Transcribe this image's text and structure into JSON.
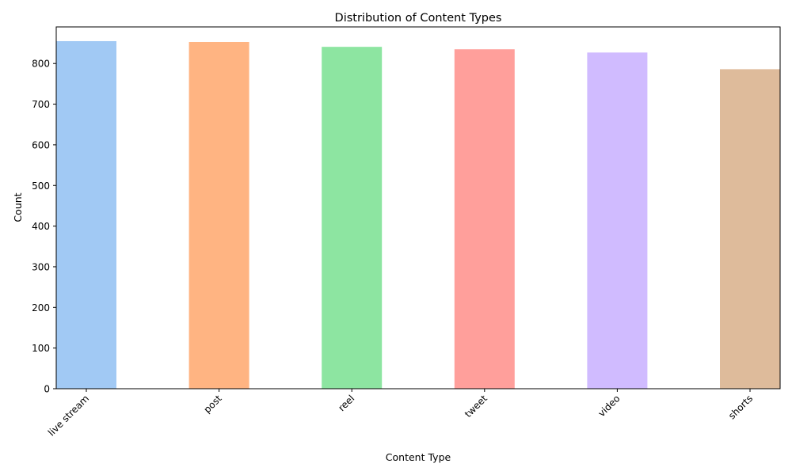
{
  "chart_data": {
    "type": "bar",
    "title": "Distribution of Content Types",
    "xlabel": "Content Type",
    "ylabel": "Count",
    "categories": [
      "live stream",
      "post",
      "reel",
      "tweet",
      "video",
      "shorts"
    ],
    "values": [
      855,
      853,
      841,
      835,
      827,
      786
    ],
    "colors": [
      "#a1c9f4",
      "#ffb482",
      "#8de5a1",
      "#ff9f9b",
      "#d0bbff",
      "#debb9b"
    ],
    "ylim": [
      0,
      890
    ],
    "yticks": [
      0,
      100,
      200,
      300,
      400,
      500,
      600,
      700,
      800
    ],
    "grid": false,
    "legend": "none"
  }
}
